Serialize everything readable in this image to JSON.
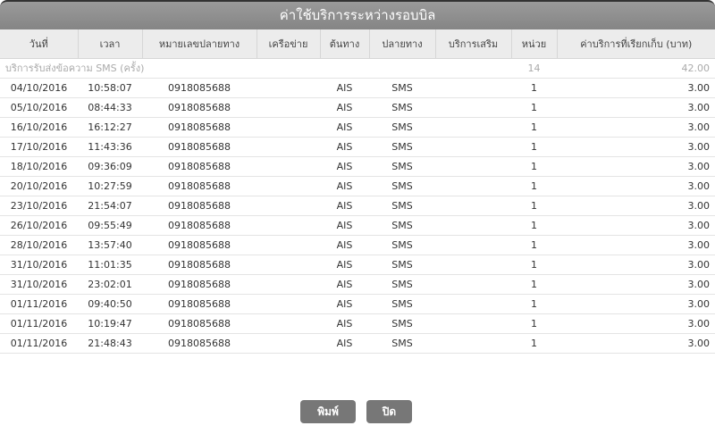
{
  "title": "ค่าใช้บริการระหว่างรอบบิล",
  "columns": [
    "วันที่",
    "เวลา",
    "หมายเลขปลายทาง",
    "เครือข่าย",
    "ต้นทาง",
    "ปลายทาง",
    "บริการเสริม",
    "หน่วย",
    "ค่าบริการที่เรียกเก็บ (บาท)"
  ],
  "group": {
    "label": "บริการรับส่งข้อความ SMS (ครั้ง)",
    "units": "14",
    "amount": "42.00"
  },
  "rows": [
    [
      "04/10/2016",
      "10:58:07",
      "0918085688",
      "",
      "AIS",
      "SMS",
      "",
      "1",
      "3.00"
    ],
    [
      "05/10/2016",
      "08:44:33",
      "0918085688",
      "",
      "AIS",
      "SMS",
      "",
      "1",
      "3.00"
    ],
    [
      "16/10/2016",
      "16:12:27",
      "0918085688",
      "",
      "AIS",
      "SMS",
      "",
      "1",
      "3.00"
    ],
    [
      "17/10/2016",
      "11:43:36",
      "0918085688",
      "",
      "AIS",
      "SMS",
      "",
      "1",
      "3.00"
    ],
    [
      "18/10/2016",
      "09:36:09",
      "0918085688",
      "",
      "AIS",
      "SMS",
      "",
      "1",
      "3.00"
    ],
    [
      "20/10/2016",
      "10:27:59",
      "0918085688",
      "",
      "AIS",
      "SMS",
      "",
      "1",
      "3.00"
    ],
    [
      "23/10/2016",
      "21:54:07",
      "0918085688",
      "",
      "AIS",
      "SMS",
      "",
      "1",
      "3.00"
    ],
    [
      "26/10/2016",
      "09:55:49",
      "0918085688",
      "",
      "AIS",
      "SMS",
      "",
      "1",
      "3.00"
    ],
    [
      "28/10/2016",
      "13:57:40",
      "0918085688",
      "",
      "AIS",
      "SMS",
      "",
      "1",
      "3.00"
    ],
    [
      "31/10/2016",
      "11:01:35",
      "0918085688",
      "",
      "AIS",
      "SMS",
      "",
      "1",
      "3.00"
    ],
    [
      "31/10/2016",
      "23:02:01",
      "0918085688",
      "",
      "AIS",
      "SMS",
      "",
      "1",
      "3.00"
    ],
    [
      "01/11/2016",
      "09:40:50",
      "0918085688",
      "",
      "AIS",
      "SMS",
      "",
      "1",
      "3.00"
    ],
    [
      "01/11/2016",
      "10:19:47",
      "0918085688",
      "",
      "AIS",
      "SMS",
      "",
      "1",
      "3.00"
    ],
    [
      "01/11/2016",
      "21:48:43",
      "0918085688",
      "",
      "AIS",
      "SMS",
      "",
      "1",
      "3.00"
    ]
  ],
  "buttons": {
    "print": "พิมพ์",
    "close": "ปิด"
  }
}
